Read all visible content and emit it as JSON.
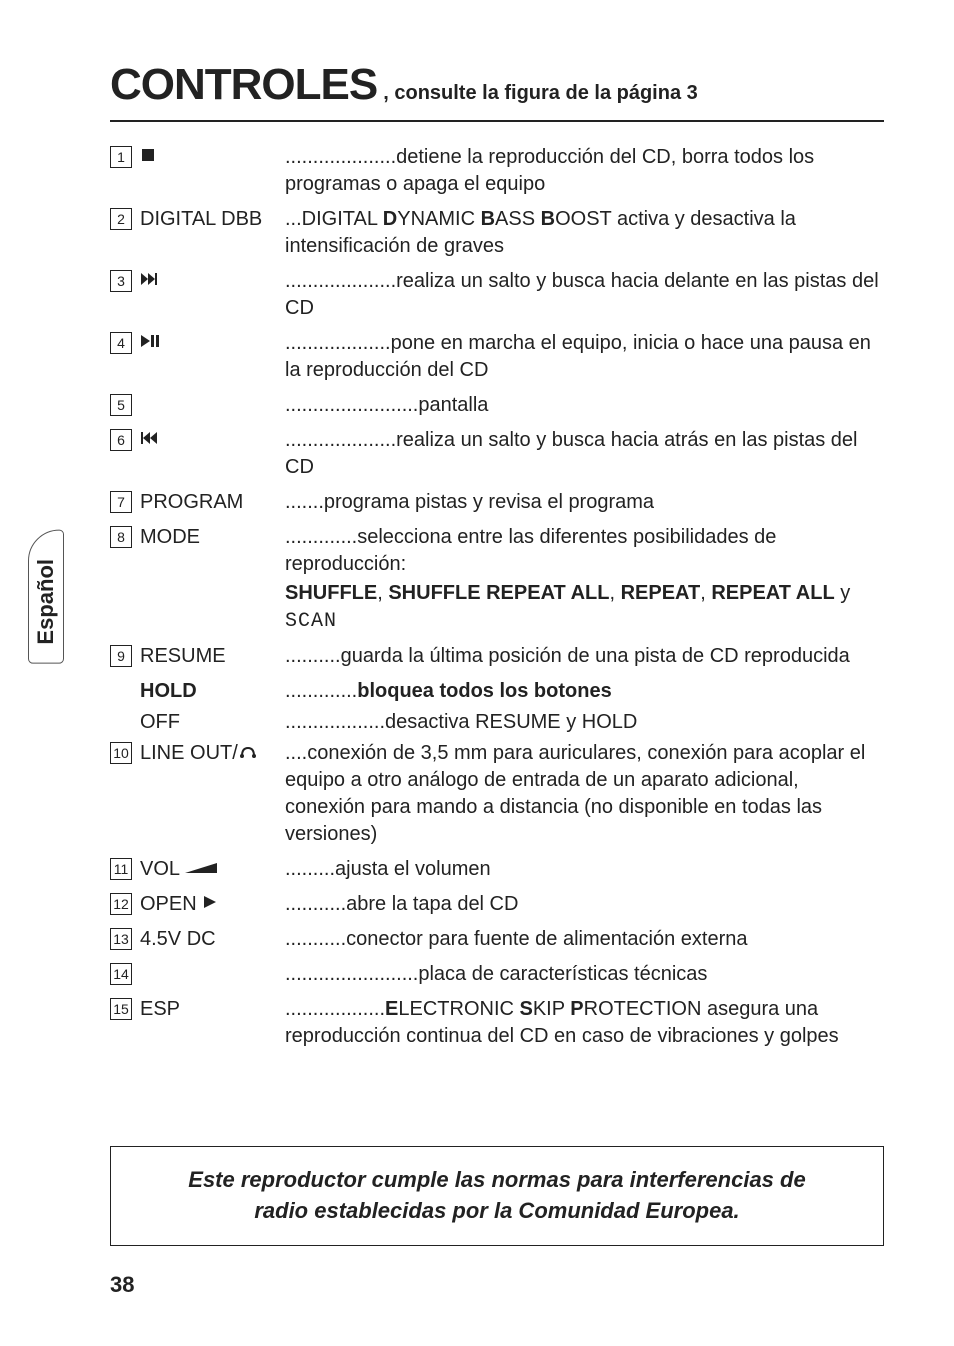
{
  "title": {
    "main": "CONTROLES",
    "sub": ", consulte la figura de la página 3"
  },
  "side_tab": "Español",
  "page_number": "38",
  "footer": {
    "line1": "Este reproductor cumple las normas para interferencias de",
    "line2": "radio establecidas por la Comunidad Europea."
  },
  "items": [
    {
      "num": "1",
      "label_svg": "stop",
      "label": "",
      "desc": "....................detiene la reproducción del CD, borra todos los programas o apaga el equipo"
    },
    {
      "num": "2",
      "label": "DIGITAL DBB",
      "desc_rich": [
        {
          "t": "...DIGITAL "
        },
        {
          "t": "D",
          "b": true
        },
        {
          "t": "YNAMIC "
        },
        {
          "t": "B",
          "b": true
        },
        {
          "t": "ASS "
        },
        {
          "t": "B",
          "b": true
        },
        {
          "t": "OOST activa y desactiva la intensificación de graves"
        }
      ]
    },
    {
      "num": "3",
      "label_svg": "fwd",
      "label": "",
      "desc": "....................realiza un salto y busca hacia delante en las pistas del CD"
    },
    {
      "num": "4",
      "label_svg": "playpause",
      "label": "",
      "desc": "...................pone en marcha el equipo, inicia o hace una pausa en la reproducción del CD"
    },
    {
      "num": "5",
      "label": "",
      "desc": "........................pantalla"
    },
    {
      "num": "6",
      "label_svg": "rew",
      "label": "",
      "desc": "....................realiza un salto y busca hacia atrás en las pistas del CD"
    },
    {
      "num": "7",
      "label": "PROGRAM",
      "desc": ".......programa pistas y revisa el programa"
    },
    {
      "num": "8",
      "label": "MODE",
      "desc": ".............selecciona entre las diferentes posibilidades de reproducción:",
      "extra_rich": [
        {
          "t": "SHUFFLE",
          "b": true
        },
        {
          "t": ", "
        },
        {
          "t": "SHUFFLE REPEAT ALL",
          "b": true
        },
        {
          "t": ", "
        },
        {
          "t": "REPEAT",
          "b": true
        },
        {
          "t": ", "
        },
        {
          "t": "REPEAT ALL",
          "b": true
        },
        {
          "t": " y "
        },
        {
          "t": "SCAN",
          "seg": true
        }
      ]
    },
    {
      "num": "9",
      "label": "RESUME",
      "desc": "..........guarda la última posición de una pista de CD reproducida",
      "subs": [
        {
          "label_rich": [
            {
              "t": "HOLD",
              "b": true
            }
          ],
          "desc_rich": [
            {
              "t": " ............."
            },
            {
              "t": "bloquea todos los botones",
              "b": true
            }
          ]
        },
        {
          "label": "OFF",
          "desc": " ..................desactiva RESUME y HOLD"
        }
      ]
    },
    {
      "num": "10",
      "label_svg": "lineout",
      "label": "LINE OUT/",
      "desc": " ....conexión de 3,5 mm para auriculares, conexión para acoplar el equipo a otro análogo de entrada de un aparato adicional, conexión para mando a distancia (no disponible en todas las versiones)"
    },
    {
      "num": "11",
      "label_svg": "vol",
      "label": "VOL ",
      "desc": " .........ajusta el volumen"
    },
    {
      "num": "12",
      "label_svg": "open",
      "label": "OPEN ",
      "desc": "...........abre la tapa del CD"
    },
    {
      "num": "13",
      "label": "4.5V DC",
      "desc": " ...........conector para fuente de alimentación externa"
    },
    {
      "num": "14",
      "label": "",
      "desc": "........................placa de características técnicas"
    },
    {
      "num": "15",
      "label": "ESP",
      "desc_rich": [
        {
          "t": ".................."
        },
        {
          "t": "E",
          "b": true
        },
        {
          "t": "LECTRONIC "
        },
        {
          "t": "S",
          "b": true
        },
        {
          "t": "KIP "
        },
        {
          "t": "P",
          "b": true
        },
        {
          "t": "ROTECTION asegura una reproducción continua del CD en caso de vibraciones y golpes"
        }
      ]
    }
  ]
}
